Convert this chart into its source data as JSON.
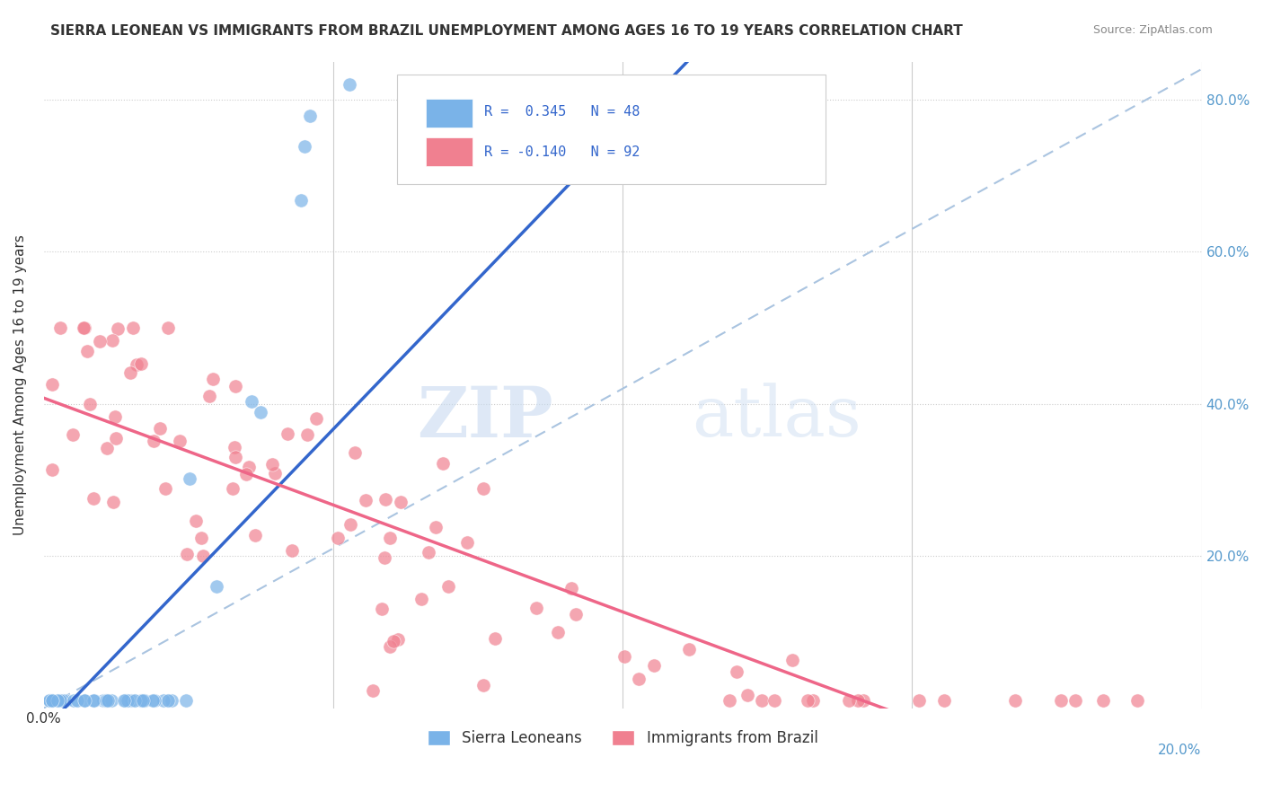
{
  "title": "SIERRA LEONEAN VS IMMIGRANTS FROM BRAZIL UNEMPLOYMENT AMONG AGES 16 TO 19 YEARS CORRELATION CHART",
  "source": "Source: ZipAtlas.com",
  "ylabel": "Unemployment Among Ages 16 to 19 years",
  "xmin": 0.0,
  "xmax": 0.2,
  "ymin": 0.0,
  "ymax": 0.85,
  "legend1_label": "R =  0.345   N = 48",
  "legend2_label": "R = -0.140   N = 92",
  "sierra_color": "#7ab3e8",
  "brazil_color": "#f08090",
  "regression_line_blue": "#3366cc",
  "regression_line_pink": "#ee6688",
  "dashed_line_color": "#aac4e0",
  "watermark_zip": "ZIP",
  "watermark_atlas": "atlas"
}
